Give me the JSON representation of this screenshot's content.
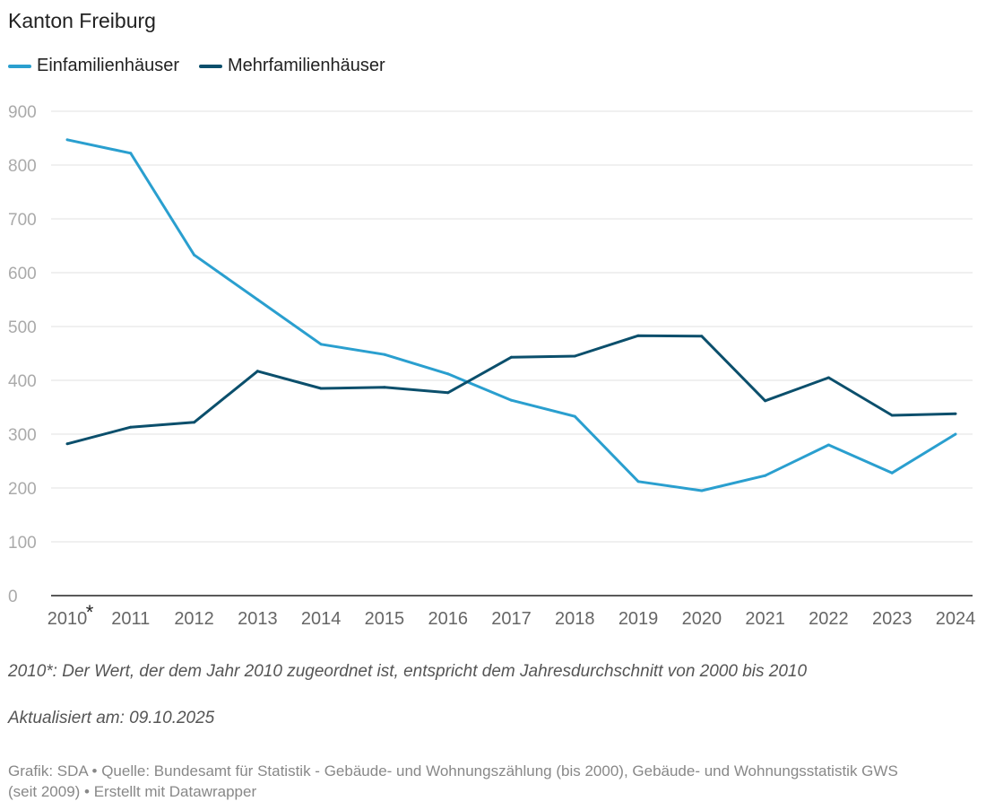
{
  "chart_data": {
    "type": "line",
    "title": "Kanton Freiburg",
    "categories": [
      "2010",
      "2011",
      "2012",
      "2013",
      "2014",
      "2015",
      "2016",
      "2017",
      "2018",
      "2019",
      "2020",
      "2021",
      "2022",
      "2023",
      "2024"
    ],
    "x_marker": "*",
    "yticks": [
      "0",
      "100",
      "200",
      "300",
      "400",
      "500",
      "600",
      "700",
      "800",
      "900"
    ],
    "ylim": [
      0,
      900
    ],
    "grid": true,
    "legend_position": "top-left",
    "series": [
      {
        "name": "Einfamilienhäuser",
        "color": "#2a9fcf",
        "values": [
          847,
          822,
          633,
          550,
          467,
          448,
          412,
          363,
          333,
          212,
          195,
          223,
          280,
          228,
          300
        ]
      },
      {
        "name": "Mehrfamilienhäuser",
        "color": "#0b4f6c",
        "values": [
          282,
          313,
          322,
          417,
          385,
          387,
          377,
          443,
          445,
          483,
          482,
          362,
          405,
          335,
          338
        ]
      }
    ]
  },
  "notes": {
    "footnote": "2010*: Der Wert, der dem Jahr 2010 zugeordnet ist, entspricht dem Jahresdurchschnitt von 2000 bis 2010",
    "updated": "Aktualisiert am: 09.10.2025",
    "credits": "Grafik: SDA • Quelle: Bundesamt für Statistik - Gebäude- und Wohnungszählung (bis 2000), Gebäude- und Wohnungsstatistik GWS (seit 2009)  • Erstellt mit Datawrapper"
  }
}
